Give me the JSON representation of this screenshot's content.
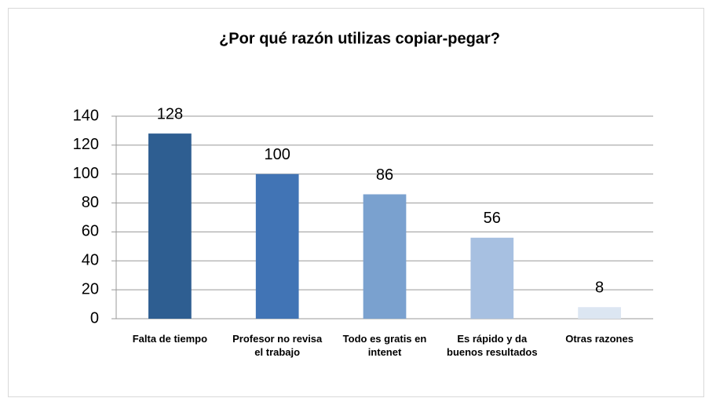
{
  "chart_data": {
    "type": "bar",
    "title": "¿Por qué razón utilizas copiar-pegar?",
    "categories": [
      "Falta de tiempo",
      "Profesor no revisa el trabajo",
      "Todo es gratis en intenet",
      "Es rápido y da buenos resultados",
      "Otras razones"
    ],
    "values": [
      128,
      100,
      86,
      56,
      8
    ],
    "colors": [
      "#2e5e91",
      "#4174b5",
      "#7aa1cf",
      "#a7c0e1",
      "#dce6f2"
    ],
    "ylim": [
      0,
      140
    ],
    "yticks": [
      0,
      20,
      40,
      60,
      80,
      100,
      120,
      140
    ],
    "grid": true
  }
}
